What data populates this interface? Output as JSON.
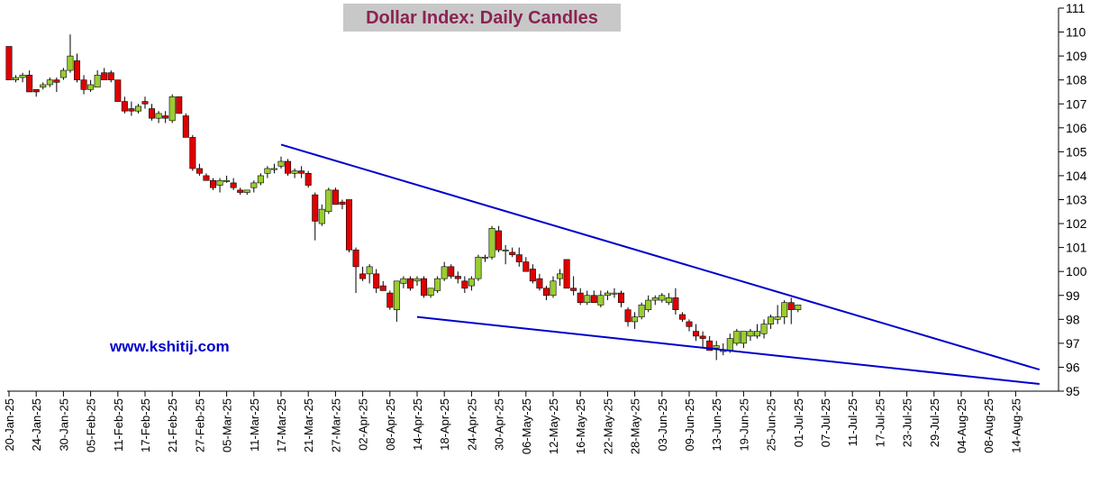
{
  "chart_data": {
    "type": "candlestick",
    "title": "Dollar Index: Daily Candles",
    "watermark": "www.kshitij.com",
    "ylim": [
      95,
      111
    ],
    "y_ticks": [
      95,
      96,
      97,
      98,
      99,
      100,
      101,
      102,
      103,
      104,
      105,
      106,
      107,
      108,
      109,
      110,
      111
    ],
    "x_ticks": [
      "20-Jan-25",
      "24-Jan-25",
      "30-Jan-25",
      "05-Feb-25",
      "11-Feb-25",
      "17-Feb-25",
      "21-Feb-25",
      "27-Feb-25",
      "05-Mar-25",
      "11-Mar-25",
      "17-Mar-25",
      "21-Mar-25",
      "27-Mar-25",
      "02-Apr-25",
      "08-Apr-25",
      "14-Apr-25",
      "18-Apr-25",
      "24-Apr-25",
      "30-Apr-25",
      "06-May-25",
      "12-May-25",
      "16-May-25",
      "22-May-25",
      "28-May-25",
      "03-Jun-25",
      "09-Jun-25",
      "13-Jun-25",
      "19-Jun-25",
      "25-Jun-25",
      "01-Jul-25",
      "07-Jul-25",
      "11-Jul-25",
      "17-Jul-25",
      "23-Jul-25",
      "29-Jul-25",
      "04-Aug-25",
      "08-Aug-25",
      "14-Aug-25"
    ],
    "colors": {
      "up": "#9acd32",
      "down": "#e00000",
      "trendline": "#0000cc",
      "title_bg": "#c8c8c8",
      "title_text": "#8b2252",
      "watermark": "#0000cc"
    },
    "candles": [
      [
        109.4,
        109.4,
        108.0,
        108.0
      ],
      [
        108.0,
        108.2,
        107.9,
        108.1
      ],
      [
        108.1,
        108.3,
        107.9,
        108.2
      ],
      [
        108.2,
        108.4,
        107.5,
        107.5
      ],
      [
        107.6,
        107.6,
        107.3,
        107.5
      ],
      [
        107.7,
        107.9,
        107.6,
        107.8
      ],
      [
        107.8,
        108.1,
        107.7,
        108.0
      ],
      [
        108.0,
        108.1,
        107.5,
        107.9
      ],
      [
        108.1,
        108.5,
        108.0,
        108.4
      ],
      [
        108.4,
        109.9,
        108.3,
        109.0
      ],
      [
        108.8,
        109.1,
        107.9,
        108.0
      ],
      [
        108.0,
        108.2,
        107.4,
        107.6
      ],
      [
        107.6,
        108.0,
        107.5,
        107.8
      ],
      [
        107.7,
        108.4,
        107.7,
        108.2
      ],
      [
        108.3,
        108.5,
        108.0,
        108.0
      ],
      [
        108.3,
        108.4,
        107.9,
        108.0
      ],
      [
        108.0,
        108.0,
        107.1,
        107.1
      ],
      [
        107.1,
        107.3,
        106.6,
        106.7
      ],
      [
        106.8,
        107.1,
        106.5,
        106.7
      ],
      [
        106.7,
        107.0,
        106.6,
        106.9
      ],
      [
        107.1,
        107.3,
        106.8,
        107.0
      ],
      [
        106.8,
        107.0,
        106.3,
        106.4
      ],
      [
        106.4,
        106.7,
        106.2,
        106.6
      ],
      [
        106.5,
        106.7,
        106.2,
        106.4
      ],
      [
        106.3,
        107.4,
        106.2,
        107.3
      ],
      [
        107.3,
        107.3,
        106.6,
        106.6
      ],
      [
        106.5,
        106.6,
        105.7,
        105.6
      ],
      [
        105.6,
        105.7,
        104.2,
        104.3
      ],
      [
        104.3,
        104.5,
        104.0,
        104.1
      ],
      [
        104.0,
        104.1,
        103.8,
        103.8
      ],
      [
        103.8,
        103.9,
        103.4,
        103.5
      ],
      [
        103.6,
        103.9,
        103.3,
        103.8
      ],
      [
        103.8,
        104.0,
        103.7,
        103.8
      ],
      [
        103.7,
        103.9,
        103.4,
        103.5
      ],
      [
        103.4,
        103.5,
        103.2,
        103.3
      ],
      [
        103.3,
        103.4,
        103.2,
        103.4
      ],
      [
        103.5,
        103.8,
        103.3,
        103.7
      ],
      [
        103.7,
        104.1,
        103.6,
        104.0
      ],
      [
        104.1,
        104.4,
        103.9,
        104.3
      ],
      [
        104.3,
        104.5,
        104.1,
        104.3
      ],
      [
        104.4,
        104.8,
        104.3,
        104.6
      ],
      [
        104.6,
        104.7,
        104.0,
        104.1
      ],
      [
        104.1,
        104.3,
        103.9,
        104.2
      ],
      [
        104.2,
        104.4,
        103.9,
        104.1
      ],
      [
        104.1,
        104.2,
        103.5,
        103.6
      ],
      [
        103.2,
        103.3,
        101.3,
        102.1
      ],
      [
        102.0,
        102.8,
        101.9,
        102.6
      ],
      [
        102.5,
        103.5,
        102.4,
        103.4
      ],
      [
        103.4,
        103.5,
        102.8,
        102.8
      ],
      [
        102.9,
        103.0,
        102.6,
        102.8
      ],
      [
        103.0,
        103.0,
        100.8,
        100.9
      ],
      [
        100.9,
        101.0,
        99.1,
        100.2
      ],
      [
        99.9,
        100.2,
        99.6,
        99.7
      ],
      [
        99.9,
        100.3,
        99.5,
        100.2
      ],
      [
        99.9,
        100.1,
        99.1,
        99.3
      ],
      [
        99.4,
        99.6,
        99.2,
        99.2
      ],
      [
        99.1,
        99.2,
        98.4,
        98.5
      ],
      [
        98.4,
        99.6,
        97.9,
        99.6
      ],
      [
        99.5,
        99.8,
        99.3,
        99.7
      ],
      [
        99.7,
        99.8,
        99.2,
        99.3
      ],
      [
        99.6,
        99.8,
        99.4,
        99.7
      ],
      [
        99.7,
        99.8,
        98.9,
        99.0
      ],
      [
        99.0,
        99.3,
        98.9,
        99.3
      ],
      [
        99.2,
        99.8,
        99.1,
        99.7
      ],
      [
        99.7,
        100.4,
        99.6,
        100.2
      ],
      [
        100.2,
        100.3,
        99.7,
        99.8
      ],
      [
        99.8,
        100.0,
        99.5,
        99.7
      ],
      [
        99.6,
        99.8,
        99.1,
        99.3
      ],
      [
        99.4,
        99.8,
        99.2,
        99.7
      ],
      [
        99.7,
        100.7,
        99.6,
        100.6
      ],
      [
        100.6,
        100.7,
        100.4,
        100.6
      ],
      [
        100.6,
        101.9,
        100.5,
        101.8
      ],
      [
        101.7,
        101.9,
        100.8,
        100.9
      ],
      [
        100.9,
        101.1,
        100.3,
        100.9
      ],
      [
        100.8,
        101.0,
        100.6,
        100.7
      ],
      [
        100.7,
        101.0,
        100.2,
        100.4
      ],
      [
        100.4,
        100.6,
        100.0,
        100.0
      ],
      [
        100.1,
        100.3,
        99.5,
        99.6
      ],
      [
        99.7,
        99.9,
        99.2,
        99.3
      ],
      [
        99.3,
        99.4,
        98.8,
        99.0
      ],
      [
        99.0,
        99.8,
        98.9,
        99.6
      ],
      [
        99.7,
        100.1,
        99.4,
        99.9
      ],
      [
        100.5,
        100.5,
        99.3,
        99.3
      ],
      [
        99.3,
        99.8,
        99.0,
        99.2
      ],
      [
        99.1,
        99.3,
        98.6,
        98.7
      ],
      [
        98.7,
        99.2,
        98.6,
        99.0
      ],
      [
        99.0,
        99.2,
        98.7,
        98.7
      ],
      [
        98.6,
        99.2,
        98.5,
        99.0
      ],
      [
        99.0,
        99.2,
        98.8,
        99.1
      ],
      [
        99.1,
        99.3,
        98.9,
        99.1
      ],
      [
        99.1,
        99.2,
        98.5,
        98.7
      ],
      [
        98.4,
        98.5,
        97.7,
        97.9
      ],
      [
        97.9,
        98.3,
        97.6,
        98.1
      ],
      [
        98.1,
        98.7,
        98.0,
        98.6
      ],
      [
        98.4,
        99.0,
        98.3,
        98.8
      ],
      [
        98.8,
        99.0,
        98.6,
        98.9
      ],
      [
        98.8,
        99.1,
        98.7,
        99.0
      ],
      [
        98.7,
        99.1,
        98.6,
        98.9
      ],
      [
        98.9,
        99.3,
        98.2,
        98.4
      ],
      [
        98.2,
        98.3,
        97.9,
        98.0
      ],
      [
        97.9,
        98.0,
        97.5,
        97.7
      ],
      [
        97.5,
        97.8,
        97.1,
        97.3
      ],
      [
        97.3,
        97.5,
        96.8,
        97.2
      ],
      [
        97.1,
        97.3,
        96.7,
        96.7
      ],
      [
        96.8,
        97.1,
        96.3,
        96.9
      ],
      [
        96.7,
        97.0,
        96.5,
        96.7
      ],
      [
        96.7,
        97.4,
        96.6,
        97.2
      ],
      [
        97.0,
        97.6,
        96.9,
        97.5
      ],
      [
        97.0,
        97.5,
        96.8,
        97.5
      ],
      [
        97.3,
        97.6,
        97.1,
        97.5
      ],
      [
        97.3,
        97.8,
        97.2,
        97.5
      ],
      [
        97.4,
        98.0,
        97.2,
        97.8
      ],
      [
        97.8,
        98.2,
        97.6,
        98.1
      ],
      [
        98.0,
        98.6,
        97.8,
        98.1
      ],
      [
        98.1,
        98.8,
        97.8,
        98.7
      ],
      [
        98.7,
        98.9,
        97.8,
        98.4
      ],
      [
        98.4,
        98.6,
        98.3,
        98.6
      ]
    ],
    "trendlines": [
      {
        "from": [
          "17-Mar-25",
          105.3
        ],
        "to": [
          "14-Aug-25+",
          95.9
        ]
      },
      {
        "from": [
          "14-Apr-25",
          98.1
        ],
        "to": [
          "14-Aug-25+",
          95.3
        ]
      }
    ]
  }
}
